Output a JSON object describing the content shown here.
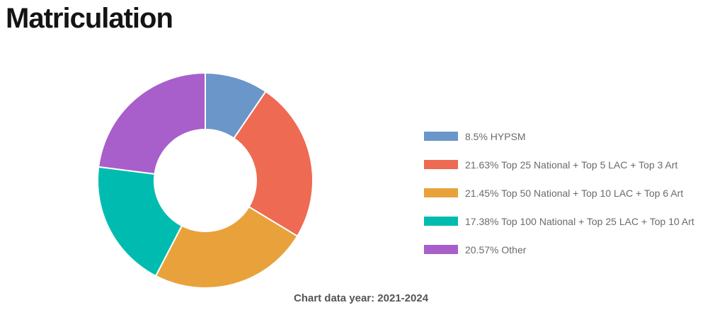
{
  "page": {
    "title": "Matriculation",
    "caption": "Chart data year: 2021-2024"
  },
  "chart_data": {
    "type": "pie",
    "subtype": "donut",
    "title": "Matriculation",
    "start_angle": "top",
    "direction": "clockwise",
    "hole_ratio": 0.47,
    "legend_position": "right",
    "slice_border_color": "#ffffff",
    "series": [
      {
        "value": 8.5,
        "label": "HYPSM",
        "color": "#6a96c9"
      },
      {
        "value": 21.63,
        "label": "Top 25 National + Top 5 LAC + Top 3 Art",
        "color": "#ee6a52"
      },
      {
        "value": 21.45,
        "label": "Top 50 National + Top 10 LAC + Top 6 Art",
        "color": "#e9a23b"
      },
      {
        "value": 17.38,
        "label": "Top 100 National + Top 25 LAC + Top 10 Art",
        "color": "#00bcb0"
      },
      {
        "value": 20.57,
        "label": "Other",
        "color": "#a85ecb"
      }
    ]
  }
}
